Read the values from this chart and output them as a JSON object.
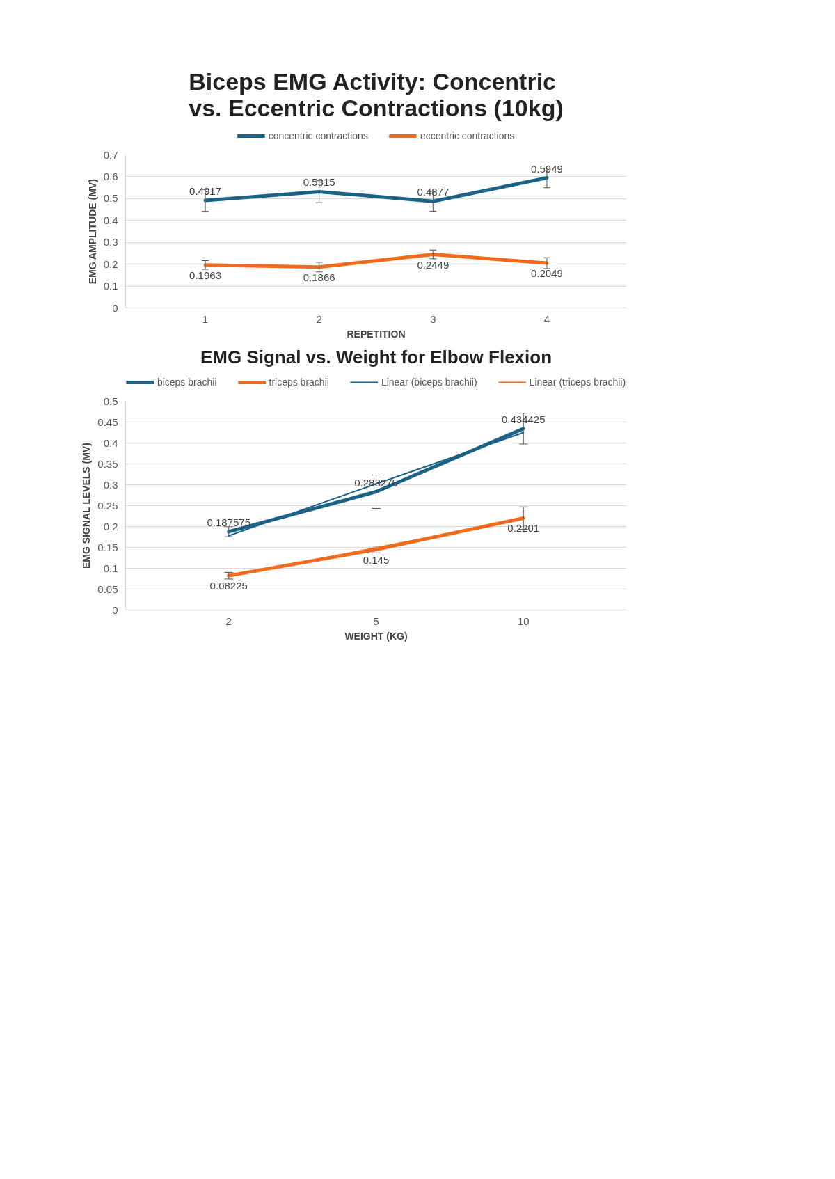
{
  "chart_data": [
    {
      "type": "line",
      "title": "Biceps EMG Activity: Concentric vs. Eccentric Contractions (10kg)",
      "xlabel": "REPETITION",
      "ylabel": "EMG AMPLITUDE (MV)",
      "categories": [
        "1",
        "2",
        "3",
        "4"
      ],
      "ylim": [
        0,
        0.7
      ],
      "yticks": [
        0,
        0.1,
        0.2,
        0.3,
        0.4,
        0.5,
        0.6,
        0.7
      ],
      "grid": "y",
      "legend": "top",
      "marker": "none",
      "series": [
        {
          "name": "concentric contractions",
          "color": "#1b6386",
          "values": [
            0.4917,
            0.5315,
            0.4877,
            0.5949
          ],
          "errors": [
            0.05,
            0.05,
            0.045,
            0.045
          ],
          "value_labels": [
            "0.4917",
            "0.5315",
            "0.4877",
            "0.5949"
          ]
        },
        {
          "name": "eccentric contractions",
          "color": "#f26b1d",
          "values": [
            0.1963,
            0.1866,
            0.2449,
            0.2049
          ],
          "errors": [
            0.02,
            0.022,
            0.02,
            0.025
          ],
          "value_labels": [
            "0.1963",
            "0.1866",
            "0.2449",
            "0.2049"
          ]
        }
      ]
    },
    {
      "type": "line",
      "title": "EMG Signal vs. Weight for Elbow Flexion",
      "xlabel": "WEIGHT (KG)",
      "ylabel": "EMG SIGNAL LEVELS (MV)",
      "categories": [
        "2",
        "5",
        "10"
      ],
      "ylim": [
        0,
        0.5
      ],
      "yticks": [
        0,
        0.05,
        0.1,
        0.15,
        0.2,
        0.25,
        0.3,
        0.35,
        0.4,
        0.45,
        0.5
      ],
      "grid": "y",
      "legend": "top",
      "marker": "none",
      "series": [
        {
          "name": "biceps brachii",
          "color": "#1b6386",
          "values": [
            0.187575,
            0.283275,
            0.434425
          ],
          "errors": [
            0.012,
            0.04,
            0.037
          ],
          "value_labels": [
            "0.187575",
            "0.283275",
            "0.434425"
          ]
        },
        {
          "name": "triceps brachii",
          "color": "#f26b1d",
          "values": [
            0.08225,
            0.145,
            0.2201
          ],
          "errors": [
            0.008,
            0.008,
            0.027
          ],
          "value_labels": [
            "0.08225",
            "0.145",
            "0.2201"
          ]
        },
        {
          "name": "Linear (biceps brachii)",
          "color": "#1b6386",
          "values": [
            0.178,
            0.302,
            0.425
          ]
        },
        {
          "name": "Linear (triceps brachii)",
          "color": "#f26b1d",
          "values": [
            0.08,
            0.149,
            0.218
          ]
        }
      ]
    }
  ]
}
